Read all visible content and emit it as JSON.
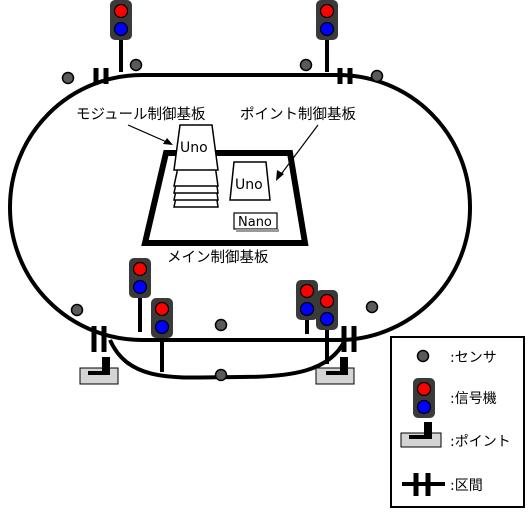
{
  "labels": {
    "module_board": "モジュール制御基板",
    "point_board": "ポイント制御基板",
    "main_board": "メイン制御基板",
    "uno_left": "Uno",
    "uno_right": "Uno",
    "nano": "Nano"
  },
  "legend": {
    "sensor": ":センサ",
    "signal": ":信号機",
    "point": ":ポイント",
    "section": ":区間"
  },
  "colors": {
    "signal_red": "#ff0000",
    "signal_blue": "#0000ff",
    "signal_body": "#3a3a3a",
    "sensor": "#5a5a5a",
    "point_base": "#d4d4d4",
    "board_face": "#ffffff"
  }
}
